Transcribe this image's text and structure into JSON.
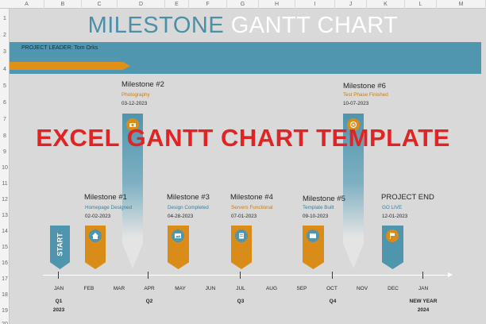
{
  "spreadsheet": {
    "columns": [
      "A",
      "B",
      "C",
      "D",
      "E",
      "F",
      "G",
      "H",
      "I",
      "J",
      "K",
      "L",
      "M"
    ],
    "rows": [
      "1",
      "2",
      "3",
      "4",
      "5",
      "6",
      "7",
      "8",
      "9",
      "10",
      "11",
      "12",
      "13",
      "14",
      "15",
      "16",
      "17",
      "18",
      "19",
      "20"
    ]
  },
  "title": {
    "part1": "MILESTONE",
    "part2": "GANTT CHART"
  },
  "project_leader": "PROJECT LEADER: Tom Orks",
  "overlay_text": "EXCEL GANTT CHART TEMPLATE",
  "colors": {
    "teal": "#4f95ad",
    "orange": "#da8c18",
    "grey_bar": "#e2e2e2",
    "background": "#d9d9d9",
    "overlay_red": "#e02424"
  },
  "milestones": [
    {
      "id": "start",
      "label": "START",
      "icon": "start-label"
    },
    {
      "id": "m1",
      "name": "Milestone #1",
      "subtitle": "Homepage Designed",
      "date": "02-02-2023",
      "icon": "home-icon"
    },
    {
      "id": "m2",
      "name": "Milestone #2",
      "subtitle": "Photography",
      "date": "03-12-2023",
      "icon": "camera-icon"
    },
    {
      "id": "m3",
      "name": "Milestone #3",
      "subtitle": "Design Completed",
      "date": "04-28-2023",
      "icon": "image-icon"
    },
    {
      "id": "m4",
      "name": "Milestone #4",
      "subtitle": "Servers Functional",
      "date": "07-01-2023",
      "icon": "server-icon"
    },
    {
      "id": "m5",
      "name": "Milestone #5",
      "subtitle": "Template Built",
      "date": "09-10-2023",
      "icon": "browser-icon"
    },
    {
      "id": "m6",
      "name": "Milestone #6",
      "subtitle": "Test Phase Finished",
      "date": "10-07-2023",
      "icon": "target-icon"
    },
    {
      "id": "end",
      "name": "PROJECT END",
      "subtitle": "GO LIVE",
      "date": "12-01-2023",
      "icon": "finish-flag-icon"
    }
  ],
  "timeline": {
    "months": [
      "JAN",
      "FEB",
      "MAR",
      "APR",
      "MAY",
      "JUN",
      "JUL",
      "AUG",
      "SEP",
      "OCT",
      "NOV",
      "DEC",
      "JAN"
    ],
    "quarters": [
      {
        "label": "Q1",
        "year": "2023"
      },
      {
        "label": "Q2"
      },
      {
        "label": "Q3"
      },
      {
        "label": "Q4"
      },
      {
        "label": "NEW YEAR",
        "year": "2024"
      }
    ]
  }
}
